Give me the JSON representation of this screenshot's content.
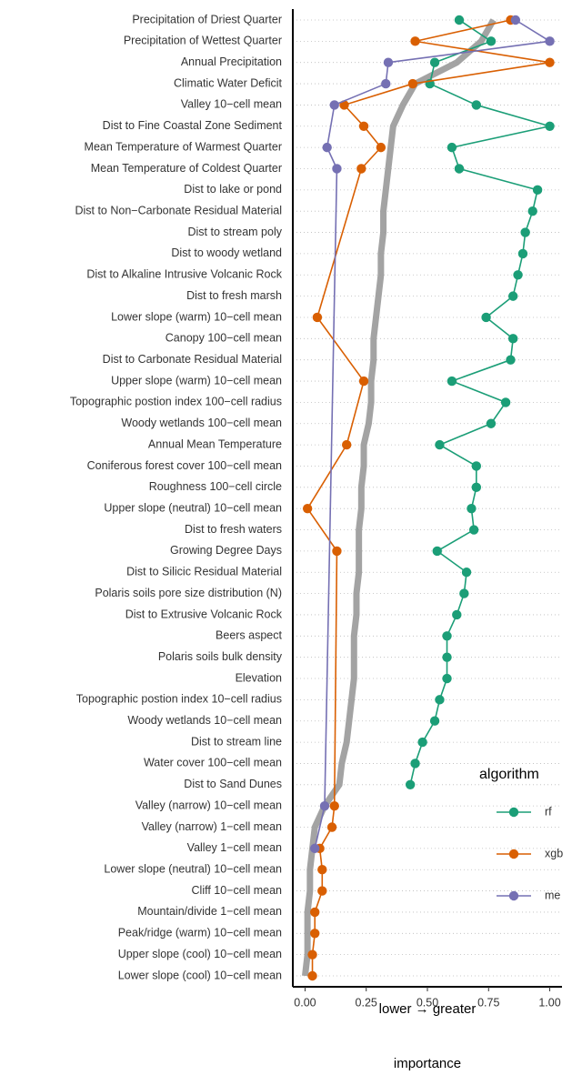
{
  "chart_data": {
    "type": "dot-line",
    "categories": [
      "Precipitation of Driest Quarter",
      "Precipitation of Wettest Quarter",
      "Annual Precipitation",
      "Climatic Water Deficit",
      "Valley 10−cell mean",
      "Dist to Fine Coastal Zone Sediment",
      "Mean Temperature of Warmest Quarter",
      "Mean Temperature of Coldest Quarter",
      "Dist to lake or pond",
      "Dist to Non−Carbonate Residual Material",
      "Dist to stream poly",
      "Dist to woody wetland",
      "Dist to Alkaline Intrusive Volcanic Rock",
      "Dist to fresh marsh",
      "Lower slope (warm) 10−cell mean",
      "Canopy 100−cell mean",
      "Dist to Carbonate Residual Material",
      "Upper slope (warm) 10−cell mean",
      "Topographic postion index 100−cell radius",
      "Woody wetlands 100−cell mean",
      "Annual Mean Temperature",
      "Coniferous forest cover 100−cell mean",
      "Roughness 100−cell circle",
      "Upper slope (neutral) 10−cell mean",
      "Dist to fresh waters",
      "Growing Degree Days",
      "Dist to Silicic Residual Material",
      "Polaris soils pore size distribution (N)",
      "Dist to Extrusive Volcanic Rock",
      "Beers aspect",
      "Polaris soils bulk density",
      "Elevation",
      "Topographic postion index 10−cell radius",
      "Woody wetlands 10−cell mean",
      "Dist to stream line",
      "Water cover 100−cell mean",
      "Dist to Sand Dunes",
      "Valley (narrow) 10−cell mean",
      "Valley (narrow) 1−cell mean",
      "Valley 1−cell mean",
      "Lower slope (neutral) 10−cell mean",
      "Cliff 10−cell mean",
      "Mountain/divide 1−cell mean",
      "Peak/ridge (warm) 10−cell mean",
      "Upper slope (cool) 10−cell mean",
      "Lower slope (cool) 10−cell mean"
    ],
    "band": {
      "color": "#999999",
      "values": [
        0.77,
        0.72,
        0.62,
        0.45,
        0.4,
        0.36,
        0.35,
        0.34,
        0.33,
        0.32,
        0.32,
        0.31,
        0.31,
        0.3,
        0.29,
        0.28,
        0.28,
        0.27,
        0.27,
        0.26,
        0.24,
        0.24,
        0.23,
        0.23,
        0.22,
        0.22,
        0.22,
        0.21,
        0.21,
        0.2,
        0.2,
        0.2,
        0.19,
        0.18,
        0.17,
        0.15,
        0.14,
        0.08,
        0.04,
        0.03,
        0.02,
        0.02,
        0.01,
        0.01,
        0.01,
        0.0
      ]
    },
    "series": [
      {
        "name": "rf",
        "color": "#1b9e77",
        "values": [
          0.63,
          0.76,
          0.53,
          0.51,
          0.7,
          1.0,
          0.6,
          0.63,
          0.95,
          0.93,
          0.9,
          0.89,
          0.87,
          0.85,
          0.74,
          0.85,
          0.84,
          0.6,
          0.82,
          0.76,
          0.55,
          0.7,
          0.7,
          0.68,
          0.69,
          0.54,
          0.66,
          0.65,
          0.62,
          0.58,
          0.58,
          0.58,
          0.55,
          0.53,
          0.48,
          0.45,
          0.43,
          null,
          null,
          null,
          null,
          null,
          null,
          null,
          null,
          null
        ]
      },
      {
        "name": "xgb",
        "color": "#d95f02",
        "values": [
          0.84,
          0.45,
          1.0,
          0.44,
          0.16,
          0.24,
          0.31,
          0.23,
          null,
          null,
          null,
          null,
          null,
          null,
          0.05,
          null,
          null,
          0.24,
          null,
          null,
          0.17,
          null,
          null,
          0.01,
          null,
          0.13,
          null,
          null,
          null,
          null,
          null,
          null,
          null,
          null,
          null,
          null,
          null,
          0.12,
          0.11,
          0.06,
          0.07,
          0.07,
          0.04,
          0.04,
          0.03,
          0.03
        ]
      },
      {
        "name": "me",
        "color": "#7570b3",
        "values": [
          0.86,
          1.0,
          0.34,
          0.33,
          0.12,
          null,
          0.09,
          0.13,
          null,
          null,
          null,
          null,
          null,
          null,
          null,
          null,
          null,
          null,
          null,
          null,
          null,
          null,
          null,
          null,
          null,
          null,
          null,
          null,
          null,
          null,
          null,
          null,
          null,
          null,
          null,
          null,
          null,
          0.08,
          null,
          0.04,
          null,
          null,
          null,
          null,
          null,
          null
        ]
      }
    ],
    "xlim": [
      -0.05,
      1.05
    ],
    "xticks": [
      {
        "value": 0,
        "label": "0.00"
      },
      {
        "value": 0.25,
        "label": "0.25"
      },
      {
        "value": 0.5,
        "label": "0.50"
      },
      {
        "value": 0.75,
        "label": "0.75"
      },
      {
        "value": 1,
        "label": "1.00"
      }
    ],
    "xlabel": "lower → greater",
    "xlabel_sub": "importance",
    "legend_title": "algorithm",
    "legend": "right",
    "grid": true
  }
}
